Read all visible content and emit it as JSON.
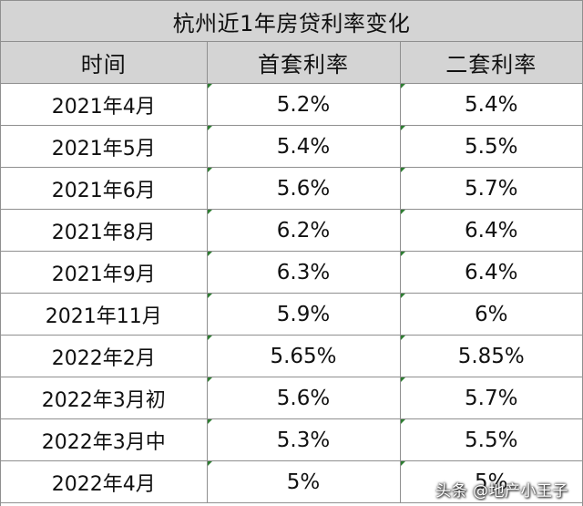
{
  "table": {
    "title": "杭州近1年房贷利率变化",
    "headers": [
      "时间",
      "首套利率",
      "二套利率"
    ],
    "rows": [
      {
        "date": "2021年4月",
        "first": "5.2%",
        "second": "5.4%"
      },
      {
        "date": "2021年5月",
        "first": "5.4%",
        "second": "5.5%"
      },
      {
        "date": "2021年6月",
        "first": "5.6%",
        "second": "5.7%"
      },
      {
        "date": "2021年8月",
        "first": "6.2%",
        "second": "6.4%"
      },
      {
        "date": "2021年9月",
        "first": "6.3%",
        "second": "6.4%"
      },
      {
        "date": "2021年11月",
        "first": "5.9%",
        "second": "6%"
      },
      {
        "date": "2022年2月",
        "first": "5.65%",
        "second": "5.85%"
      },
      {
        "date": "2022年3月初",
        "first": "5.6%",
        "second": "5.7%"
      },
      {
        "date": "2022年3月中",
        "first": "5.3%",
        "second": "5.5%"
      },
      {
        "date": "2022年4月",
        "first": "5%",
        "second": "5%"
      }
    ]
  },
  "watermark": "头条 @地产小王子",
  "colors": {
    "header_bg": "#d4d4d4",
    "grid": "#8f8f8f",
    "cell_flag": "#2e7d32"
  }
}
